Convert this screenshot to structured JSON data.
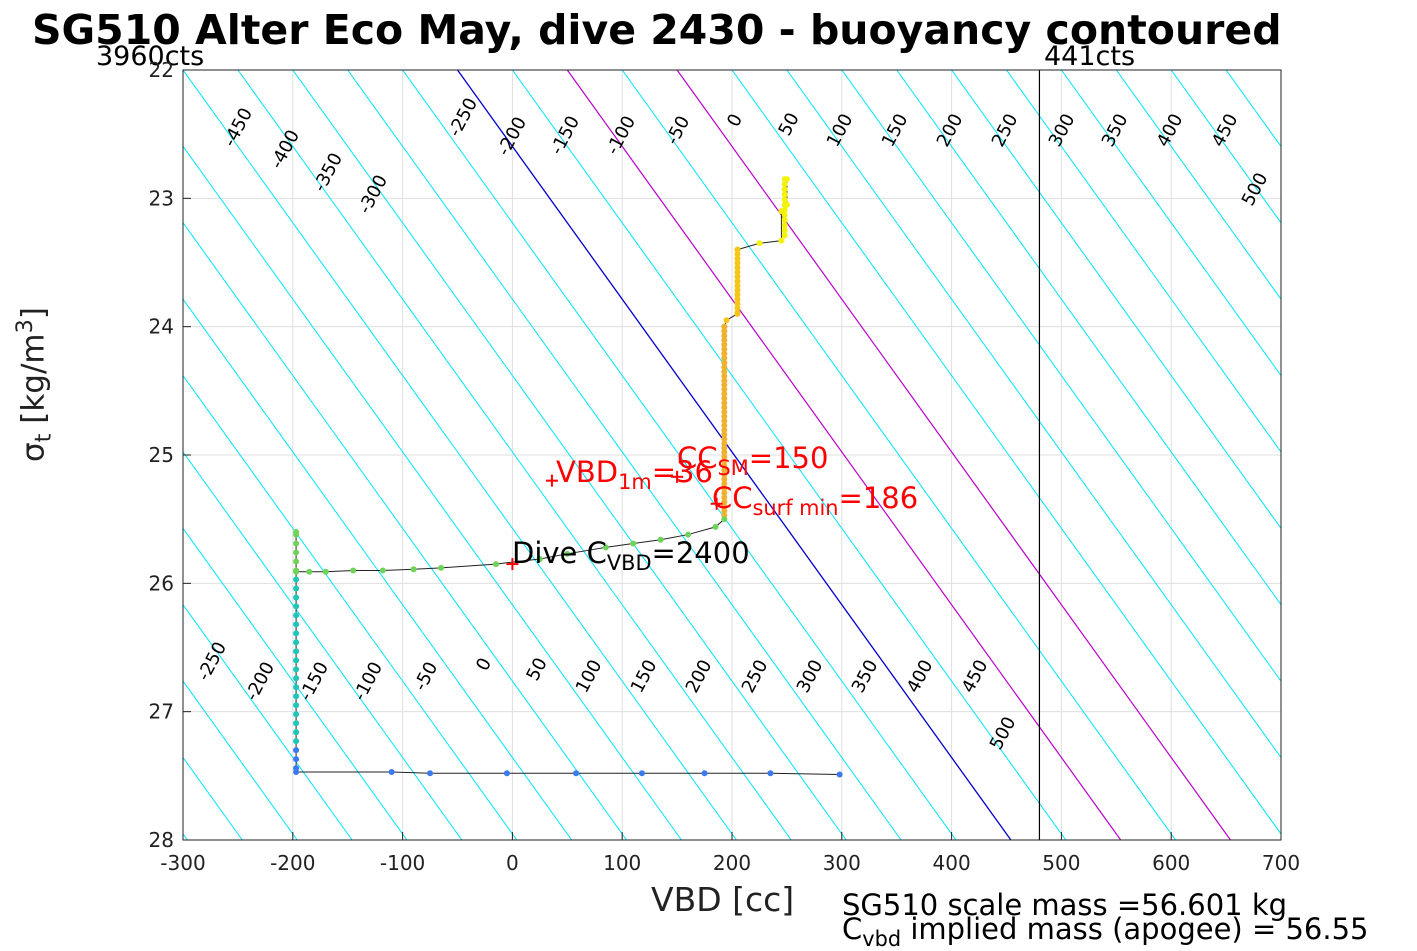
{
  "header": {
    "title": "SG510 Alter Eco May, dive 2430 - buoyancy contoured",
    "left_count": "3960cts",
    "right_count": "441cts"
  },
  "chart_data": {
    "type": "scatter",
    "xlabel": "VBD [cc]",
    "ylabel": "σ_t [kg/m^3]",
    "xlim": [
      -300,
      700
    ],
    "ylim": [
      28,
      22
    ],
    "y_reversed": true,
    "grid": true,
    "xticks": [
      "-300",
      "-200",
      "-100",
      "0",
      "100",
      "200",
      "300",
      "400",
      "500",
      "600",
      "700"
    ],
    "yticks": [
      "22",
      "23",
      "24",
      "25",
      "26",
      "27",
      "28"
    ],
    "contour_levels": [
      "-450",
      "-400",
      "-350",
      "-300",
      "-250",
      "-200",
      "-150",
      "-100",
      "-50",
      "0",
      "50",
      "100",
      "150",
      "200",
      "250",
      "300",
      "350",
      "400",
      "450",
      "500"
    ],
    "highlighted_contours": {
      "zero_color": "#0000cc",
      "marked_color": "#bb00cc",
      "other_color": "#00e5ff",
      "marked_levels": [
        100,
        200
      ]
    },
    "vertical_line_vbd": 480,
    "profile": [
      {
        "vbd": 250,
        "sigma": 22.85
      },
      {
        "vbd": 250,
        "sigma": 23.05
      },
      {
        "vbd": 245,
        "sigma": 23.1
      },
      {
        "vbd": 245,
        "sigma": 23.33
      },
      {
        "vbd": 225,
        "sigma": 23.35
      },
      {
        "vbd": 205,
        "sigma": 23.4
      },
      {
        "vbd": 205,
        "sigma": 23.9
      },
      {
        "vbd": 195,
        "sigma": 23.95
      },
      {
        "vbd": 193,
        "sigma": 24.0
      },
      {
        "vbd": 193,
        "sigma": 25.5
      },
      {
        "vbd": 185,
        "sigma": 25.56
      },
      {
        "vbd": 160,
        "sigma": 25.62
      },
      {
        "vbd": 135,
        "sigma": 25.66
      },
      {
        "vbd": 110,
        "sigma": 25.69
      },
      {
        "vbd": 85,
        "sigma": 25.72
      },
      {
        "vbd": 50,
        "sigma": 25.77
      },
      {
        "vbd": 25,
        "sigma": 25.81
      },
      {
        "vbd": -15,
        "sigma": 25.85
      },
      {
        "vbd": -65,
        "sigma": 25.88
      },
      {
        "vbd": -90,
        "sigma": 25.89
      },
      {
        "vbd": -118,
        "sigma": 25.9
      },
      {
        "vbd": -145,
        "sigma": 25.9
      },
      {
        "vbd": -170,
        "sigma": 25.91
      },
      {
        "vbd": -185,
        "sigma": 25.91
      },
      {
        "vbd": -197,
        "sigma": 25.91
      },
      {
        "vbd": -197,
        "sigma": 25.6
      },
      {
        "vbd": -197,
        "sigma": 27.47
      },
      {
        "vbd": -110,
        "sigma": 27.47
      },
      {
        "vbd": -75,
        "sigma": 27.48
      },
      {
        "vbd": -5,
        "sigma": 27.48
      },
      {
        "vbd": 58,
        "sigma": 27.48
      },
      {
        "vbd": 118,
        "sigma": 27.48
      },
      {
        "vbd": 175,
        "sigma": 27.48
      },
      {
        "vbd": 235,
        "sigma": 27.48
      },
      {
        "vbd": 298,
        "sigma": 27.49
      }
    ],
    "markers": [
      {
        "vbd": 36,
        "sigma": 25.2,
        "label_main": "VBD",
        "label_sub": "1m",
        "label_tail": "=36"
      },
      {
        "vbd": 150,
        "sigma": 25.17,
        "label_main": "CC",
        "label_sub": "SM",
        "label_tail": "=150"
      },
      {
        "vbd": 186,
        "sigma": 25.38,
        "label_main": "CC",
        "label_sub": "surf min",
        "label_tail": "=186"
      },
      {
        "vbd": 0,
        "sigma": 25.85,
        "label_main": "Dive C",
        "label_sub": "VBD",
        "label_tail": "=2400"
      }
    ]
  },
  "footer": {
    "scale_mass": "SG510 scale mass =56.601 kg",
    "implied_prefix": "C",
    "implied_sub": "vbd",
    "implied_rest": " implied mass (apogee) = 56.55"
  }
}
